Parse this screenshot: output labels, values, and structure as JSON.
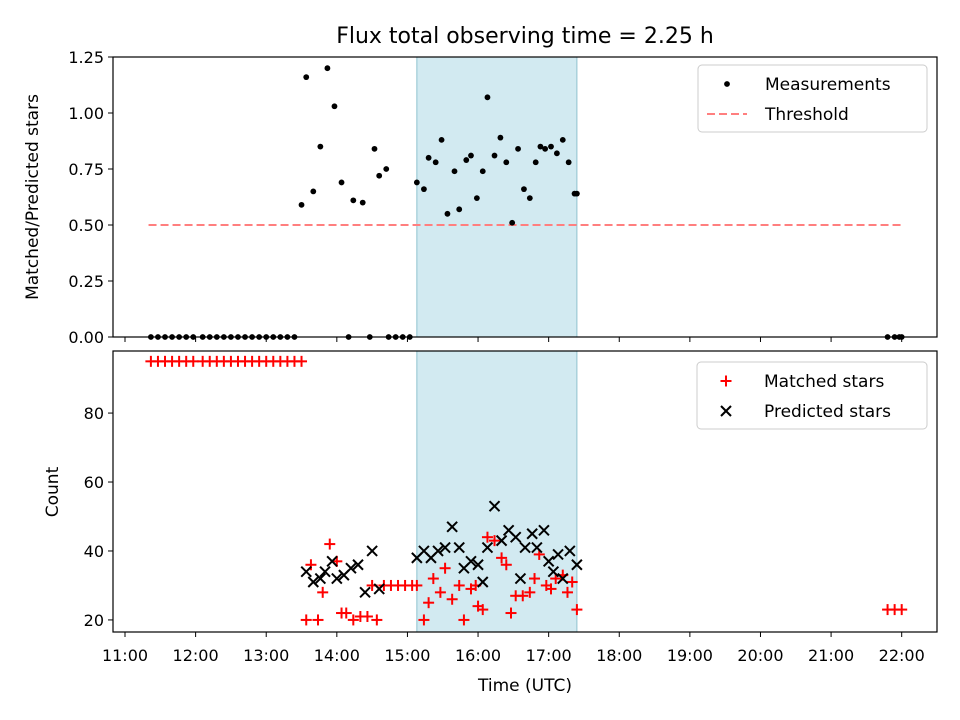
{
  "figure": {
    "title": "Flux total observing time = 2.25 h",
    "xlabel": "Time (UTC)"
  },
  "chart_data": [
    {
      "type": "scatter",
      "ylabel": "Matched/Predicted stars",
      "ylim": [
        0,
        1.25
      ],
      "yticks": [
        "0.00",
        "0.25",
        "0.50",
        "0.75",
        "1.00",
        "1.25"
      ],
      "xlim_hours": [
        10.83,
        22.5
      ],
      "xtick_labels": [
        "11:00",
        "12:00",
        "13:00",
        "14:00",
        "15:00",
        "16:00",
        "17:00",
        "18:00",
        "19:00",
        "20:00",
        "21:00",
        "22:00"
      ],
      "legend_position": "top-right",
      "shaded_interval": {
        "start": "15:08",
        "end": "17:24",
        "color": "#add8e6"
      },
      "threshold": {
        "name": "Threshold",
        "value": 0.5,
        "x_start": "11:20",
        "x_end": "22:00",
        "color": "#ff7f7f",
        "style": "dashed"
      },
      "series": [
        {
          "name": "Measurements",
          "color": "#000000",
          "marker": "dot",
          "x": [
            "11:22",
            "11:28",
            "11:34",
            "11:40",
            "11:46",
            "11:52",
            "11:58",
            "12:06",
            "12:12",
            "12:18",
            "12:24",
            "12:30",
            "12:36",
            "12:42",
            "12:48",
            "12:54",
            "13:00",
            "13:06",
            "13:12",
            "13:18",
            "13:24",
            "13:30",
            "13:34",
            "13:40",
            "13:46",
            "13:52",
            "13:58",
            "14:04",
            "14:10",
            "14:14",
            "14:22",
            "14:28",
            "14:32",
            "14:36",
            "14:42",
            "14:44",
            "14:50",
            "14:56",
            "15:02",
            "15:08",
            "15:14",
            "15:18",
            "15:24",
            "15:29",
            "15:34",
            "15:40",
            "15:44",
            "15:50",
            "15:54",
            "15:59",
            "16:04",
            "16:08",
            "16:14",
            "16:19",
            "16:24",
            "16:29",
            "16:34",
            "16:39",
            "16:44",
            "16:49",
            "16:53",
            "16:57",
            "17:02",
            "17:07",
            "17:12",
            "17:17",
            "17:22",
            "17:24",
            "21:48",
            "21:54",
            "21:58",
            "22:00"
          ],
          "y": [
            0,
            0,
            0,
            0,
            0,
            0,
            0,
            0,
            0,
            0,
            0,
            0,
            0,
            0,
            0,
            0,
            0,
            0,
            0,
            0,
            0,
            0.59,
            1.16,
            0.65,
            0.85,
            1.2,
            1.03,
            0.69,
            0,
            0.61,
            0.6,
            0,
            0.84,
            0.72,
            0.75,
            0,
            0,
            0,
            0,
            0.69,
            0.66,
            0.8,
            0.78,
            0.88,
            0.55,
            0.74,
            0.57,
            0.79,
            0.81,
            0.62,
            0.74,
            1.07,
            0.81,
            0.89,
            0.78,
            0.51,
            0.84,
            0.66,
            0.62,
            0.78,
            0.85,
            0.84,
            0.85,
            0.82,
            0.88,
            0.78,
            0.64,
            0.64,
            0,
            0,
            0,
            0
          ]
        }
      ]
    },
    {
      "type": "scatter",
      "ylabel": "Count",
      "ylim": [
        16.5,
        98
      ],
      "yticks": [
        "20",
        "40",
        "60",
        "80"
      ],
      "xlim_hours": [
        10.83,
        22.5
      ],
      "xtick_labels": [
        "11:00",
        "12:00",
        "13:00",
        "14:00",
        "15:00",
        "16:00",
        "17:00",
        "18:00",
        "19:00",
        "20:00",
        "21:00",
        "22:00"
      ],
      "legend_position": "top-right",
      "shaded_interval": {
        "start": "15:08",
        "end": "17:24",
        "color": "#add8e6"
      },
      "series": [
        {
          "name": "Matched stars",
          "color": "#ff0000",
          "marker": "plus",
          "x": [
            "11:22",
            "11:28",
            "11:34",
            "11:40",
            "11:46",
            "11:52",
            "11:58",
            "12:06",
            "12:12",
            "12:18",
            "12:24",
            "12:30",
            "12:36",
            "12:42",
            "12:48",
            "12:54",
            "13:00",
            "13:06",
            "13:12",
            "13:18",
            "13:24",
            "13:30",
            "13:34",
            "13:38",
            "13:44",
            "13:48",
            "13:54",
            "14:00",
            "14:04",
            "14:08",
            "14:14",
            "14:20",
            "14:26",
            "14:30",
            "14:34",
            "14:40",
            "14:46",
            "14:52",
            "14:58",
            "15:04",
            "15:08",
            "15:14",
            "15:18",
            "15:22",
            "15:28",
            "15:32",
            "15:38",
            "15:44",
            "15:48",
            "15:54",
            "15:58",
            "16:00",
            "16:04",
            "16:08",
            "16:14",
            "16:20",
            "16:24",
            "16:28",
            "16:32",
            "16:38",
            "16:44",
            "16:48",
            "16:52",
            "16:58",
            "17:02",
            "17:06",
            "17:12",
            "17:16",
            "17:20",
            "17:24",
            "21:48",
            "21:54",
            "22:00"
          ],
          "y": [
            95,
            95,
            95,
            95,
            95,
            95,
            95,
            95,
            95,
            95,
            95,
            95,
            95,
            95,
            95,
            95,
            95,
            95,
            95,
            95,
            95,
            95,
            20,
            36,
            20,
            28,
            42,
            37,
            22,
            22,
            20,
            21,
            21,
            30,
            20,
            30,
            30,
            30,
            30,
            30,
            30,
            20,
            25,
            32,
            28,
            35,
            26,
            30,
            20,
            29,
            30,
            24,
            23,
            44,
            43,
            38,
            36,
            22,
            27,
            27,
            28,
            32,
            39,
            30,
            29,
            32,
            33,
            28,
            31,
            23,
            23,
            23,
            23
          ]
        },
        {
          "name": "Predicted stars",
          "color": "#000000",
          "marker": "x",
          "x": [
            "13:34",
            "13:40",
            "13:46",
            "13:50",
            "13:56",
            "14:00",
            "14:06",
            "14:12",
            "14:18",
            "14:24",
            "14:30",
            "14:36",
            "15:08",
            "15:14",
            "15:20",
            "15:26",
            "15:32",
            "15:38",
            "15:44",
            "15:48",
            "15:54",
            "16:00",
            "16:04",
            "16:08",
            "16:14",
            "16:20",
            "16:26",
            "16:32",
            "16:36",
            "16:40",
            "16:46",
            "16:50",
            "16:56",
            "17:00",
            "17:04",
            "17:08",
            "17:12",
            "17:18",
            "17:24"
          ],
          "y": [
            34,
            31,
            32,
            34,
            37,
            32,
            33,
            35,
            36,
            28,
            40,
            29,
            38,
            40,
            38,
            40,
            41,
            47,
            41,
            35,
            37,
            36,
            31,
            41,
            53,
            43,
            46,
            44,
            32,
            41,
            45,
            41,
            46,
            37,
            34,
            39,
            32,
            40,
            36
          ]
        }
      ]
    }
  ]
}
